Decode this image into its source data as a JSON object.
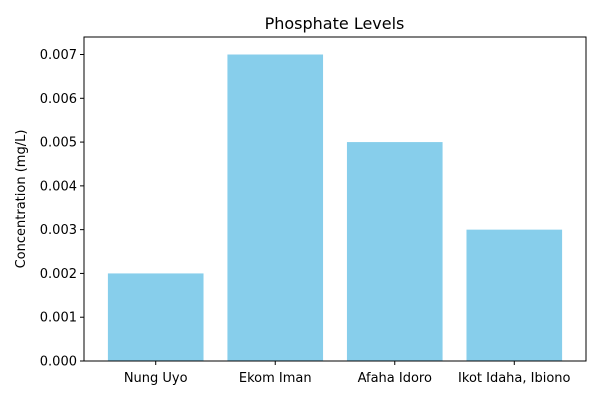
{
  "chart_data": {
    "type": "bar",
    "title": "Phosphate Levels",
    "xlabel": "",
    "ylabel": "Concentration (mg/L)",
    "categories": [
      "Nung Uyo",
      "Ekom Iman",
      "Afaha Idoro",
      "Ikot Idaha, Ibiono"
    ],
    "values": [
      0.002,
      0.007,
      0.005,
      0.003
    ],
    "ylim": [
      0,
      0.0074
    ],
    "yticks": [
      0.0,
      0.001,
      0.002,
      0.003,
      0.004,
      0.005,
      0.006,
      0.007
    ],
    "ytick_labels": [
      "0.000",
      "0.001",
      "0.002",
      "0.003",
      "0.004",
      "0.005",
      "0.006",
      "0.007"
    ],
    "bar_color": "#87ceeb",
    "grid": false,
    "legend": "none"
  }
}
